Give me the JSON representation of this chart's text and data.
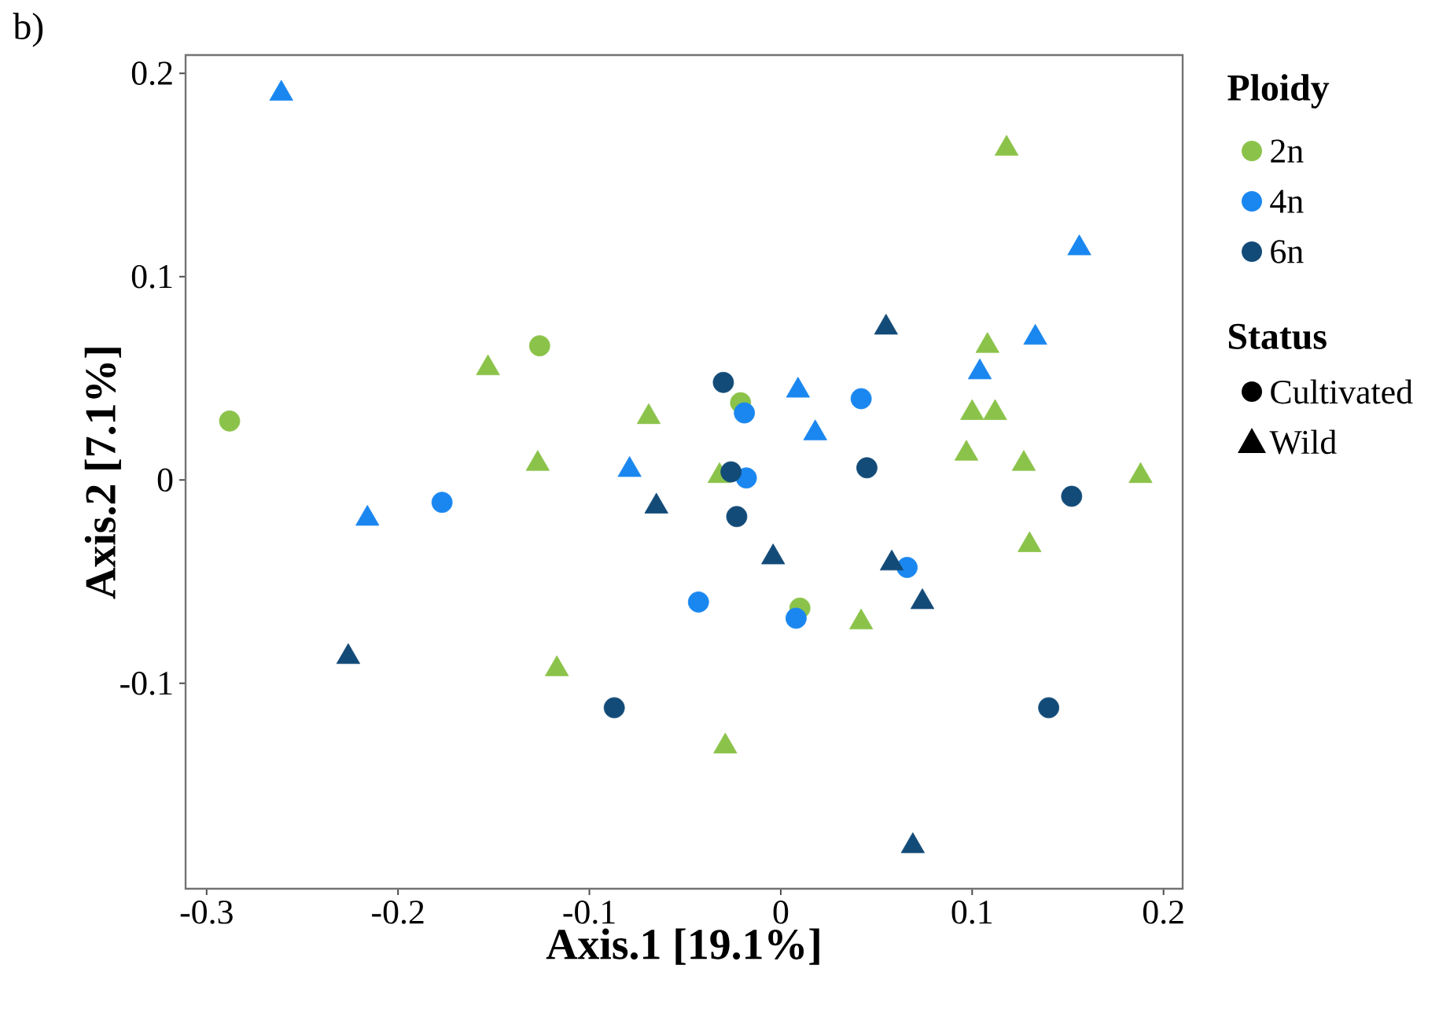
{
  "chart_data": {
    "type": "scatter",
    "title": "b)",
    "xlabel": "Axis.1 [19.1%]",
    "ylabel": "Axis.2 [7.1%]",
    "legend_title": "Ploidy",
    "legend": "right",
    "grid": false,
    "annotations": [
      "Status",
      "Cultivated",
      "Wild"
    ],
    "xlim": [
      -0.311,
      0.21
    ],
    "ylim": [
      -0.201,
      0.209
    ],
    "xticks": [
      -0.3,
      -0.2,
      -0.1,
      0,
      0.1,
      0.2
    ],
    "yticks": [
      -0.1,
      0,
      0.1,
      0.2
    ],
    "series": [
      {
        "name": "2n",
        "color": "#8bc34a",
        "marker": "circle",
        "x": [
          -0.288,
          -0.126,
          -0.021,
          0.01
        ],
        "values": [
          0.029,
          0.066,
          0.038,
          -0.063
        ]
      },
      {
        "color": "#8bc34a",
        "marker": "triangle",
        "x": [
          0.118,
          0.108,
          0.1,
          0.112,
          0.097,
          0.127,
          0.188,
          -0.153,
          -0.069,
          -0.127,
          -0.032,
          -0.117,
          0.042,
          -0.029,
          0.13
        ],
        "values": [
          0.163,
          0.066,
          0.033,
          0.033,
          0.013,
          0.008,
          0.002,
          0.055,
          0.031,
          0.008,
          0.002,
          -0.093,
          -0.07,
          -0.131,
          -0.032
        ]
      },
      {
        "name": "4n",
        "color": "#1a87f0",
        "marker": "circle",
        "x": [
          -0.177,
          -0.019,
          0.042,
          -0.018,
          -0.043,
          0.008,
          0.066
        ],
        "values": [
          -0.011,
          0.033,
          0.04,
          0.001,
          -0.06,
          -0.068,
          -0.043
        ]
      },
      {
        "color": "#1a87f0",
        "marker": "triangle",
        "x": [
          -0.261,
          -0.079,
          -0.216,
          0.009,
          0.018,
          0.104,
          0.133,
          0.156
        ],
        "values": [
          0.19,
          0.005,
          -0.019,
          0.044,
          0.023,
          0.053,
          0.07,
          0.114
        ]
      },
      {
        "name": "6n",
        "color": "#134b78",
        "marker": "circle",
        "x": [
          -0.03,
          -0.026,
          -0.023,
          0.045,
          0.152,
          0.14,
          -0.087
        ],
        "values": [
          0.048,
          0.004,
          -0.018,
          0.006,
          -0.008,
          -0.112,
          -0.112
        ]
      },
      {
        "color": "#134b78",
        "marker": "triangle",
        "x": [
          0.055,
          -0.065,
          -0.226,
          -0.004,
          0.058,
          0.074,
          0.069
        ],
        "values": [
          0.075,
          -0.013,
          -0.087,
          -0.038,
          -0.041,
          -0.06,
          -0.18
        ]
      }
    ]
  }
}
